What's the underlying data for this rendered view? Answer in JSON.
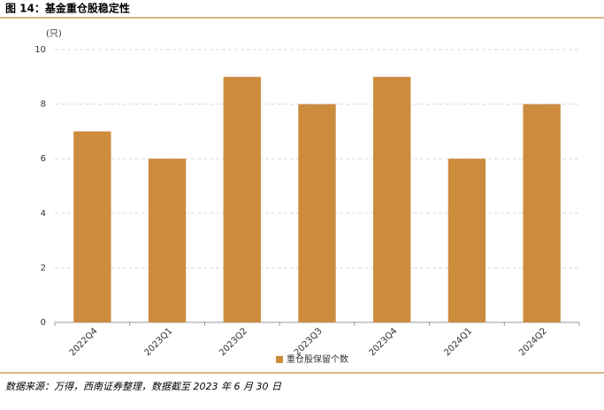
{
  "chart_data": {
    "type": "bar",
    "title": "图 14：基金重仓股稳定性",
    "y_unit": "(只)",
    "categories": [
      "2022Q4",
      "2023Q1",
      "2023Q2",
      "2023Q3",
      "2023Q4",
      "2024Q1",
      "2024Q2"
    ],
    "series": [
      {
        "name": "重仓股保留个数",
        "color": "#cd8b3e",
        "values": [
          7,
          6,
          9,
          8,
          9,
          6,
          8
        ]
      }
    ],
    "ylim": [
      0,
      10
    ],
    "yticks": [
      0,
      2,
      4,
      6,
      8,
      10
    ],
    "grid": true,
    "legend": "bottom",
    "source": "数据来源：万得，西南证券整理，数据截至 2023 年 6 月 30 日"
  }
}
